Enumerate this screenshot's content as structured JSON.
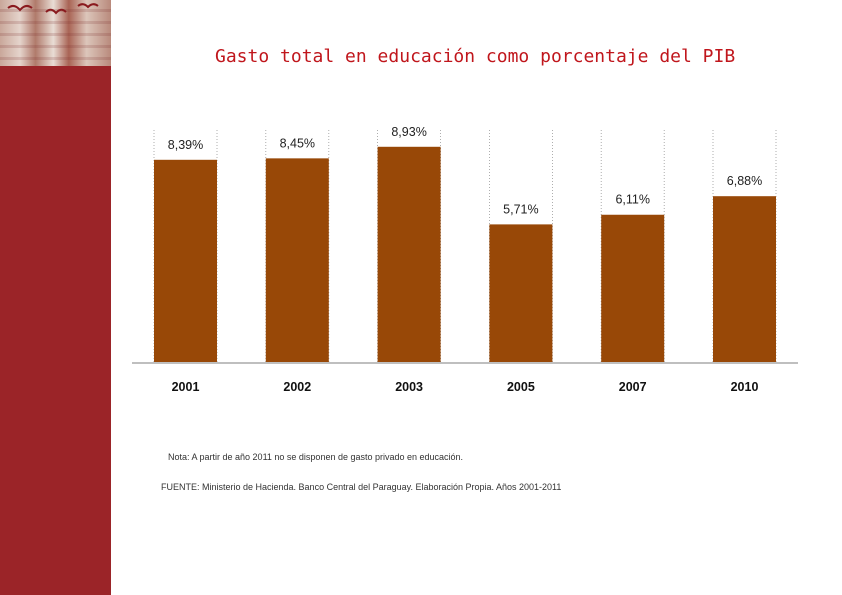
{
  "chart_data": {
    "type": "bar",
    "title": "Gasto total en educación como porcentaje del PIB",
    "categories": [
      "2001",
      "2002",
      "2003",
      "2005",
      "2007",
      "2010"
    ],
    "values": [
      8.39,
      8.45,
      8.93,
      5.71,
      6.11,
      6.88
    ],
    "value_labels": [
      "8,39%",
      "8,45%",
      "8,93%",
      "5,71%",
      "6,11%",
      "6,88%"
    ],
    "xlabel": "",
    "ylabel": "",
    "ylim": [
      0,
      10
    ],
    "grid": false,
    "legend": "none",
    "bar_color": "#984807"
  },
  "notes": {
    "note": "Nota: A partir de año 2011 no se disponen de gasto privado en educación.",
    "source": "FUENTE: Ministerio de Hacienda. Banco Central del Paraguay. Elaboración Propia. Años 2001-2011"
  },
  "theme": {
    "sidebar_color": "#9b2428",
    "title_color": "#c0161c",
    "baseline_color": "#bfbfbf"
  }
}
